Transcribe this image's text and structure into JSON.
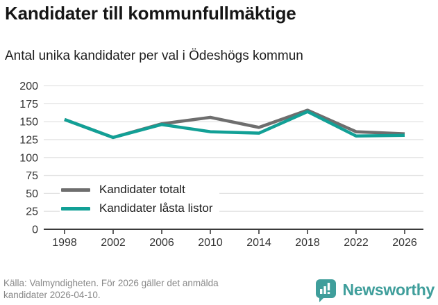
{
  "header": {
    "title": "Kandidater till kommunfullmäktige",
    "subtitle": "Antal unika kandidater per val i Ödeshögs kommun"
  },
  "chart_data": {
    "type": "line",
    "title": "Kandidater till kommunfullmäktige",
    "subtitle": "Antal unika kandidater per val i Ödeshögs kommun",
    "categories": [
      "1998",
      "2002",
      "2006",
      "2010",
      "2014",
      "2018",
      "2022",
      "2026"
    ],
    "series": [
      {
        "name": "Kandidater totalt",
        "color": "#6e6e6e",
        "values": [
          153,
          128,
          147,
          156,
          142,
          166,
          136,
          133
        ]
      },
      {
        "name": "Kandidater låsta listor",
        "color": "#12a096",
        "values": [
          153,
          128,
          146,
          136,
          134,
          164,
          130,
          131
        ]
      }
    ],
    "xlabel": "",
    "ylabel": "",
    "ylim": [
      0,
      200
    ],
    "yticks": [
      0,
      25,
      50,
      75,
      100,
      125,
      150,
      175,
      200
    ],
    "grid": true,
    "legend_position": "inside-left",
    "gridline_color": "#e3e3e3",
    "axis_color": "#3a3a3a",
    "tick_label_color": "#333333"
  },
  "footer": {
    "source_line1": "Källa: Valmyndigheten. För 2026 gäller det anmälda",
    "source_line2": "kandidater 2026-04-10.",
    "brand": "Newsworthy",
    "brand_color": "#3f9e9b",
    "logo_icon": "bar-chart-speech-bubble"
  }
}
